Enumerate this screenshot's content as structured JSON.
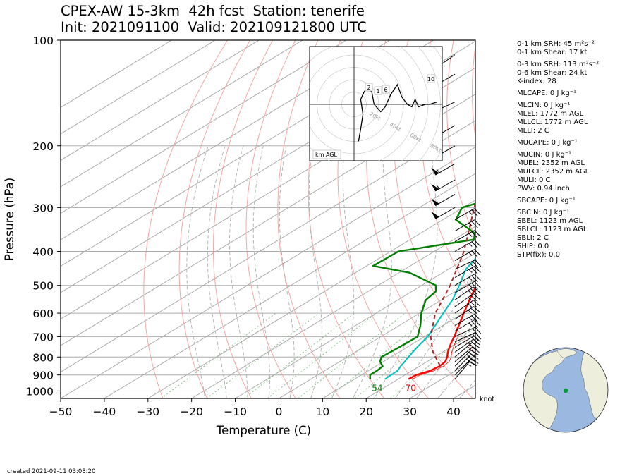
{
  "header": {
    "title_line1": "CPEX-AW 15-3km  42h fcst  Station: tenerife",
    "title_line2": "Init: 2021091100  Valid: 202109121800 UTC"
  },
  "indices": [
    "0-1 km SRH: 45 m²s⁻²",
    "0-1 km Shear: 17 kt",
    "0-3 km SRH: 113 m²s⁻²",
    "0-6 km Shear: 24 kt",
    "K-index: 28",
    "MLCAPE: 0 J kg⁻¹",
    "MLCIN: 0 J kg⁻¹",
    "MLEL: 1772 m AGL",
    "MLLCL: 1772 m AGL",
    "MLLI: 2 C",
    "MUCAPE: 0 J kg⁻¹",
    "MUCIN: 0 J kg⁻¹",
    "MUEL: 2352 m AGL",
    "MULCL: 2352 m AGL",
    "MULI: 0 C",
    "PWV: 0.94 inch",
    "SBCAPE: 0 J kg⁻¹",
    "SBCIN: 0 J kg⁻¹",
    "SBEL: 1123 m AGL",
    "SBLCL: 1123 m AGL",
    "SBLI: 2 C",
    "SHIP: 0.0",
    "STP(fix): 0.0"
  ],
  "footer": {
    "created": "created 2021-09-11 03:08:20"
  },
  "colors": {
    "temperature": "#ff0000",
    "dewpoint": "#008000",
    "wetbulb": "#00bfbf",
    "parcel": "#a52a2a",
    "dry_adiabat": "#f4a6a6",
    "moist_adiabat": "#a6a6a6",
    "mixing_ratio": "#80c080",
    "isotherm": "#aaaaaa",
    "map_ocean": "#9ab8e0",
    "map_land": "#eeeedd",
    "station_marker": "#009933"
  },
  "chart_data": {
    "type": "skew-t",
    "xlabel": "Temperature (C)",
    "ylabel": "Pressure (hPa)",
    "xlim": [
      -50,
      45
    ],
    "ylim": [
      1050,
      100
    ],
    "x_ticks": [
      -50,
      -40,
      -30,
      -20,
      -10,
      0,
      10,
      20,
      30,
      40
    ],
    "y_ticks": [
      100,
      200,
      300,
      400,
      500,
      600,
      700,
      800,
      900,
      1000
    ],
    "y_scale": "log",
    "grid": true,
    "surface_labels": {
      "dewpoint": "54",
      "temperature": "70"
    },
    "wind_unit_label": "knot",
    "series": [
      {
        "name": "temperature",
        "style": "solid",
        "points": [
          [
            925,
            22.4
          ],
          [
            900,
            22.6
          ],
          [
            875,
            24.2
          ],
          [
            850,
            24.6
          ],
          [
            825,
            24.2
          ],
          [
            800,
            22.9
          ],
          [
            775,
            21.2
          ],
          [
            750,
            19.7
          ],
          [
            725,
            18.2
          ],
          [
            700,
            16.8
          ],
          [
            650,
            13.6
          ],
          [
            600,
            10.1
          ],
          [
            550,
            6.4
          ],
          [
            500,
            2.5
          ],
          [
            450,
            -1.7
          ],
          [
            400,
            -6.3
          ],
          [
            350,
            -11.6
          ],
          [
            300,
            -17.4
          ],
          [
            250,
            -23.6
          ],
          [
            200,
            -28.1
          ],
          [
            175,
            -31.0
          ],
          [
            150,
            -33.6
          ],
          [
            125,
            -32.0
          ],
          [
            110,
            -33.0
          ],
          [
            100,
            -33.4
          ]
        ]
      },
      {
        "name": "dewpoint",
        "style": "solid",
        "points": [
          [
            925,
            13.6
          ],
          [
            900,
            12.0
          ],
          [
            875,
            12.0
          ],
          [
            850,
            11.6
          ],
          [
            825,
            9.3
          ],
          [
            800,
            7.8
          ],
          [
            750,
            8.2
          ],
          [
            700,
            8.4
          ],
          [
            650,
            4.8
          ],
          [
            600,
            0.4
          ],
          [
            550,
            -3.6
          ],
          [
            520,
            -4.5
          ],
          [
            500,
            -6.8
          ],
          [
            460,
            -17.6
          ],
          [
            440,
            -28.5
          ],
          [
            400,
            -28.2
          ],
          [
            370,
            -15.4
          ],
          [
            355,
            -17.6
          ],
          [
            325,
            -27.0
          ],
          [
            300,
            -30.2
          ],
          [
            280,
            -26.0
          ],
          [
            240,
            -26.2
          ],
          [
            200,
            -29.8
          ],
          [
            150,
            -34.0
          ],
          [
            125,
            -36.5
          ],
          [
            100,
            -37.8
          ]
        ]
      },
      {
        "name": "wetbulb",
        "style": "solid",
        "points": [
          [
            925,
            17.0
          ],
          [
            900,
            16.8
          ],
          [
            875,
            16.7
          ],
          [
            850,
            15.7
          ],
          [
            825,
            14.9
          ],
          [
            800,
            14.0
          ],
          [
            750,
            12.3
          ],
          [
            700,
            10.7
          ],
          [
            650,
            8.2
          ],
          [
            600,
            5.4
          ],
          [
            550,
            2.5
          ],
          [
            500,
            -1.4
          ],
          [
            450,
            -6.0
          ],
          [
            420,
            -7.8
          ],
          [
            400,
            -8.5
          ],
          [
            350,
            -12.9
          ],
          [
            300,
            -18.3
          ],
          [
            250,
            -24.3
          ],
          [
            200,
            -28.8
          ],
          [
            175,
            -31.6
          ],
          [
            150,
            -34.6
          ],
          [
            125,
            -33.0
          ],
          [
            110,
            -33.6
          ],
          [
            100,
            -34.0
          ]
        ]
      },
      {
        "name": "parcel",
        "style": "dashed",
        "points": [
          [
            850,
            24.8
          ],
          [
            775,
            17.8
          ],
          [
            700,
            11.4
          ],
          [
            600,
            3.6
          ],
          [
            500,
            -3.5
          ],
          [
            400,
            -13.2
          ],
          [
            300,
            -27.4
          ],
          [
            200,
            -47.0
          ],
          [
            150,
            -60.5
          ],
          [
            120,
            -71.0
          ]
        ]
      }
    ],
    "wind_barbs": [
      {
        "p": 925,
        "dir": 40,
        "kt": 15
      },
      {
        "p": 900,
        "dir": 45,
        "kt": 20
      },
      {
        "p": 875,
        "dir": 45,
        "kt": 25
      },
      {
        "p": 850,
        "dir": 45,
        "kt": 25
      },
      {
        "p": 825,
        "dir": 50,
        "kt": 25
      },
      {
        "p": 800,
        "dir": 50,
        "kt": 25
      },
      {
        "p": 775,
        "dir": 55,
        "kt": 25
      },
      {
        "p": 750,
        "dir": 60,
        "kt": 20
      },
      {
        "p": 725,
        "dir": 65,
        "kt": 20
      },
      {
        "p": 700,
        "dir": 65,
        "kt": 20
      },
      {
        "p": 675,
        "dir": 60,
        "kt": 25
      },
      {
        "p": 650,
        "dir": 60,
        "kt": 25
      },
      {
        "p": 625,
        "dir": 55,
        "kt": 25
      },
      {
        "p": 600,
        "dir": 55,
        "kt": 25
      },
      {
        "p": 575,
        "dir": 55,
        "kt": 25
      },
      {
        "p": 550,
        "dir": 55,
        "kt": 25
      },
      {
        "p": 525,
        "dir": 60,
        "kt": 25
      },
      {
        "p": 500,
        "dir": 60,
        "kt": 25
      },
      {
        "p": 475,
        "dir": 60,
        "kt": 25
      },
      {
        "p": 450,
        "dir": 65,
        "kt": 25
      },
      {
        "p": 425,
        "dir": 60,
        "kt": 25
      },
      {
        "p": 400,
        "dir": 60,
        "kt": 25
      },
      {
        "p": 375,
        "dir": 60,
        "kt": 25
      },
      {
        "p": 350,
        "dir": 60,
        "kt": 25
      },
      {
        "p": 325,
        "dir": 60,
        "kt": 25
      },
      {
        "p": 300,
        "dir": 240,
        "kt": 50
      },
      {
        "p": 275,
        "dir": 240,
        "kt": 50
      },
      {
        "p": 250,
        "dir": 240,
        "kt": 55
      },
      {
        "p": 225,
        "dir": 240,
        "kt": 55
      },
      {
        "p": 200,
        "dir": 240,
        "kt": 55
      },
      {
        "p": 175,
        "dir": 240,
        "kt": 60
      },
      {
        "p": 150,
        "dir": 245,
        "kt": 65
      },
      {
        "p": 125,
        "dir": 240,
        "kt": 60
      },
      {
        "p": 110,
        "dir": 235,
        "kt": 55
      }
    ],
    "hodograph": {
      "ring_labels": [
        "20kt",
        "40kt",
        "60kt",
        "80kt"
      ],
      "height_labels": [
        "1",
        "2",
        "6",
        "10"
      ],
      "unit_label": "km AGL",
      "trace": [
        [
          4,
          -15
        ],
        [
          6,
          -10
        ],
        [
          8,
          -4
        ],
        [
          6,
          2
        ],
        [
          9,
          5
        ],
        [
          12,
          7
        ],
        [
          16,
          5
        ],
        [
          18,
          0
        ],
        [
          24,
          -3
        ],
        [
          28,
          -1
        ],
        [
          33,
          4
        ],
        [
          39,
          8
        ],
        [
          43,
          3
        ],
        [
          48,
          0
        ],
        [
          52,
          -1
        ],
        [
          55,
          2
        ],
        [
          58,
          -1
        ],
        [
          64,
          0
        ],
        [
          68,
          0
        ],
        [
          75,
          1
        ]
      ]
    }
  }
}
